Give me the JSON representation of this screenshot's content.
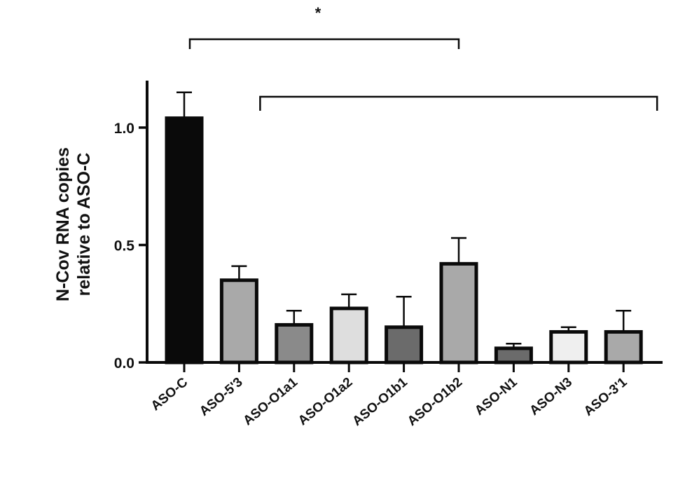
{
  "chart_data": {
    "type": "bar",
    "title": "",
    "xlabel": "",
    "ylabel_lines": [
      "N-Cov RNA copies",
      "relative to ASO-C"
    ],
    "categories": [
      "ASO-C",
      "ASO-5'3",
      "ASO-O1a1",
      "ASO-O1a2",
      "ASO-O1b1",
      "ASO-O1b2",
      "ASO-N1",
      "ASO-N3",
      "ASO-3'1"
    ],
    "values": [
      1.04,
      0.35,
      0.16,
      0.23,
      0.15,
      0.42,
      0.06,
      0.13,
      0.13
    ],
    "errors": [
      0.11,
      0.06,
      0.06,
      0.06,
      0.13,
      0.11,
      0.02,
      0.02,
      0.09
    ],
    "bar_colors": [
      "#0a0a0a",
      "#a9a9a9",
      "#8a8a8a",
      "#dedede",
      "#6b6b6b",
      "#a9a9a9",
      "#6b6b6b",
      "#efefef",
      "#a9a9a9"
    ],
    "ylim": [
      0,
      1.2
    ],
    "yticks": [
      0.0,
      0.5,
      1.0
    ],
    "ytick_labels": [
      "0.0",
      "0.5",
      "1.0"
    ],
    "grid": false,
    "legend": "none",
    "significance": [
      {
        "label": "*",
        "from": "ASO-C",
        "to": "ASO-O1b2"
      },
      {
        "label": "",
        "from": "ASO-5'3",
        "to": "ASO-3'1"
      }
    ]
  }
}
